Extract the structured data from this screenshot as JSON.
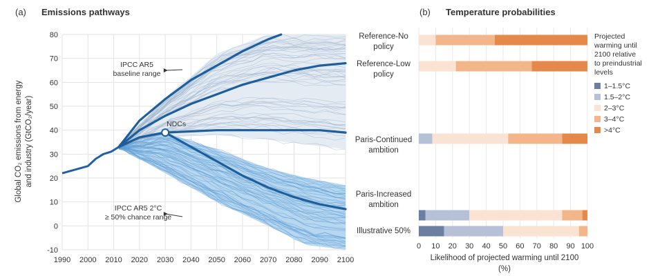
{
  "chart_data": [
    {
      "panel_label": "(a)",
      "title": "Emissions pathways",
      "type": "line",
      "ylabel_line1": "Global CO₂ emissions from energy",
      "ylabel_line2": "and industry (GtCO₂/year)",
      "xlim": [
        1990,
        2100
      ],
      "ylim": [
        -10,
        80
      ],
      "xticks": [
        1990,
        2000,
        2010,
        2020,
        2030,
        2040,
        2050,
        2060,
        2070,
        2080,
        2090,
        2100
      ],
      "yticks": [
        -10,
        0,
        10,
        20,
        30,
        40,
        50,
        60,
        70,
        80
      ],
      "history": {
        "x": [
          1990,
          2000,
          2003,
          2006,
          2009,
          2012
        ],
        "y": [
          22,
          25,
          28,
          30,
          31,
          33
        ]
      },
      "series": [
        {
          "x": [
            2012,
            2020,
            2030,
            2040,
            2050,
            2060,
            2070,
            2075
          ],
          "y": [
            33,
            44,
            53,
            61,
            67,
            73,
            78,
            80
          ]
        },
        {
          "x": [
            2012,
            2020,
            2030,
            2040,
            2050,
            2060,
            2070,
            2080,
            2090,
            2100
          ],
          "y": [
            33,
            40,
            46,
            51,
            55,
            59,
            62,
            65,
            67,
            68
          ]
        },
        {
          "x": [
            2012,
            2020,
            2030,
            2040,
            2050,
            2060,
            2070,
            2080,
            2090,
            2100
          ],
          "y": [
            33,
            37,
            39,
            39.5,
            40,
            40,
            40,
            40,
            40,
            39
          ]
        },
        {
          "x": [
            2012,
            2020,
            2030,
            2040,
            2050,
            2060,
            2070,
            2080,
            2090,
            2100
          ],
          "y": [
            33,
            37,
            39,
            33,
            27,
            21,
            16,
            12,
            9,
            7
          ]
        }
      ],
      "baseline_range": {
        "x": [
          2012,
          2030,
          2050,
          2070,
          2085,
          2100
        ],
        "upper": [
          33,
          53,
          72,
          80,
          80,
          80
        ],
        "lower": [
          33,
          37,
          38,
          36,
          34,
          32
        ]
      },
      "chance_range": {
        "x": [
          2012,
          2030,
          2050,
          2070,
          2085,
          2100
        ],
        "upper": [
          33,
          39,
          32,
          24,
          20,
          17
        ],
        "lower": [
          33,
          22,
          10,
          0,
          -8,
          -10
        ]
      },
      "ndc_point": {
        "x": 2030,
        "y": 39,
        "label": "NDCs"
      },
      "annotations": [
        {
          "line1": "IPCC AR5",
          "line2": "baseline range",
          "arrow_to": {
            "x": 2031,
            "y": 65
          }
        },
        {
          "line1": "IPCC AR5 2°C",
          "line2": "≥ 50% chance range",
          "arrow_to": {
            "x": 2031,
            "y": 5
          }
        }
      ]
    },
    {
      "panel_label": "(b)",
      "title": "Temperature probabilities",
      "type": "bar",
      "stacked": true,
      "orientation": "horizontal",
      "xlabel": "Likelihood of projected warming until 2100",
      "xunit": "(%)",
      "xlim": [
        0,
        100
      ],
      "xticks": [
        0,
        10,
        20,
        30,
        40,
        50,
        60,
        70,
        80,
        90,
        100
      ],
      "categories": [
        {
          "label": [
            "Reference-No",
            "policy"
          ],
          "values": [
            0,
            0,
            10,
            35,
            55
          ]
        },
        {
          "label": [
            "Reference-Low",
            "policy"
          ],
          "values": [
            0,
            0,
            22,
            45,
            33
          ]
        },
        {
          "label": [
            "Paris-Continued",
            "ambition"
          ],
          "values": [
            0,
            8,
            45,
            32,
            15
          ]
        },
        {
          "label": [
            "Paris-Increased",
            "ambition"
          ],
          "values": [
            4,
            26,
            55,
            12,
            3
          ]
        },
        {
          "label": [
            "Illustrative 50%"
          ],
          "values": [
            15,
            35,
            45,
            5,
            0
          ]
        }
      ],
      "legend": {
        "title": [
          "Projected",
          "warming until",
          "2100 relative",
          "to preindustrial",
          "levels"
        ],
        "entries": [
          {
            "name": "1–1.5°C",
            "color": "#6b7fa2"
          },
          {
            "name": "1.5–2°C",
            "color": "#b6c1d8"
          },
          {
            "name": "2–3°C",
            "color": "#fae3d2"
          },
          {
            "name": "3–4°C",
            "color": "#f3b58a"
          },
          {
            "name": ">4°C",
            "color": "#e5884c"
          }
        ]
      }
    }
  ]
}
